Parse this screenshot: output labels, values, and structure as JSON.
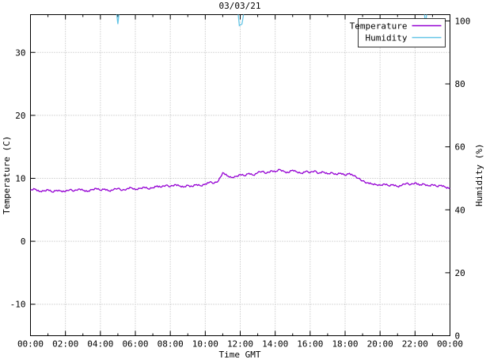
{
  "chart_data": {
    "type": "line",
    "title": "03/03/21",
    "xlabel": "Time GMT",
    "ylabel_left": "Temperature (C)",
    "ylabel_right": "Humidity (%)",
    "grid": true,
    "legend_position": "top-right",
    "x_range_hours": [
      0,
      24
    ],
    "y_left_range": [
      -15,
      36
    ],
    "y_right_range": [
      0,
      102
    ],
    "x_ticks": [
      {
        "hour": 0,
        "label": "00:00"
      },
      {
        "hour": 2,
        "label": "02:00"
      },
      {
        "hour": 4,
        "label": "04:00"
      },
      {
        "hour": 6,
        "label": "06:00"
      },
      {
        "hour": 8,
        "label": "08:00"
      },
      {
        "hour": 10,
        "label": "10:00"
      },
      {
        "hour": 12,
        "label": "12:00"
      },
      {
        "hour": 14,
        "label": "14:00"
      },
      {
        "hour": 16,
        "label": "16:00"
      },
      {
        "hour": 18,
        "label": "18:00"
      },
      {
        "hour": 20,
        "label": "20:00"
      },
      {
        "hour": 22,
        "label": "22:00"
      },
      {
        "hour": 24,
        "label": "00:00"
      }
    ],
    "x_minor_ticks_hours": [
      1,
      3,
      5,
      7,
      9,
      11,
      13,
      15,
      17,
      19,
      21,
      23
    ],
    "y_left_ticks": [
      -10,
      0,
      10,
      20,
      30
    ],
    "y_right_ticks": [
      0,
      20,
      40,
      60,
      80,
      100
    ],
    "colors": {
      "temperature": "#9400d3",
      "humidity": "#63c5e6",
      "grid": "#b3b3b3",
      "border": "#000000"
    },
    "series": [
      {
        "name": "Temperature",
        "axis": "left",
        "color": "#9400d3",
        "x_start": 0,
        "x_step_hours": 0.25,
        "values": [
          8.1,
          8.3,
          7.9,
          8.0,
          8.2,
          7.8,
          8.1,
          8.0,
          7.9,
          8.2,
          8.0,
          8.3,
          8.1,
          7.9,
          8.2,
          8.4,
          8.1,
          8.3,
          8.0,
          8.2,
          8.4,
          8.1,
          8.3,
          8.5,
          8.2,
          8.4,
          8.6,
          8.3,
          8.5,
          8.8,
          8.6,
          8.9,
          8.7,
          9.0,
          8.8,
          8.6,
          8.9,
          8.7,
          9.0,
          8.8,
          9.1,
          9.4,
          9.2,
          9.6,
          10.9,
          10.4,
          10.1,
          10.3,
          10.6,
          10.4,
          10.8,
          10.5,
          10.9,
          11.1,
          10.8,
          11.2,
          11.0,
          11.4,
          11.1,
          10.9,
          11.3,
          11.0,
          10.8,
          11.1,
          10.9,
          11.2,
          10.8,
          11.0,
          10.7,
          10.9,
          10.6,
          10.8,
          10.5,
          10.8,
          10.4,
          10.0,
          9.6,
          9.3,
          9.1,
          9.0,
          8.9,
          9.1,
          8.8,
          9.0,
          8.7,
          8.9,
          9.2,
          9.0,
          9.3,
          8.9,
          9.1,
          8.8,
          9.0,
          8.7,
          8.9,
          8.6,
          8.4
        ]
      },
      {
        "name": "Humidity",
        "axis": "right",
        "color": "#63c5e6",
        "x": [
          0,
          4.9,
          5.0,
          5.1,
          11.85,
          11.95,
          12.1,
          12.25,
          22.5,
          22.6,
          22.7,
          24
        ],
        "values": [
          104,
          104,
          99,
          104,
          104,
          98.5,
          99,
          104,
          104,
          99,
          104,
          104
        ]
      }
    ]
  }
}
